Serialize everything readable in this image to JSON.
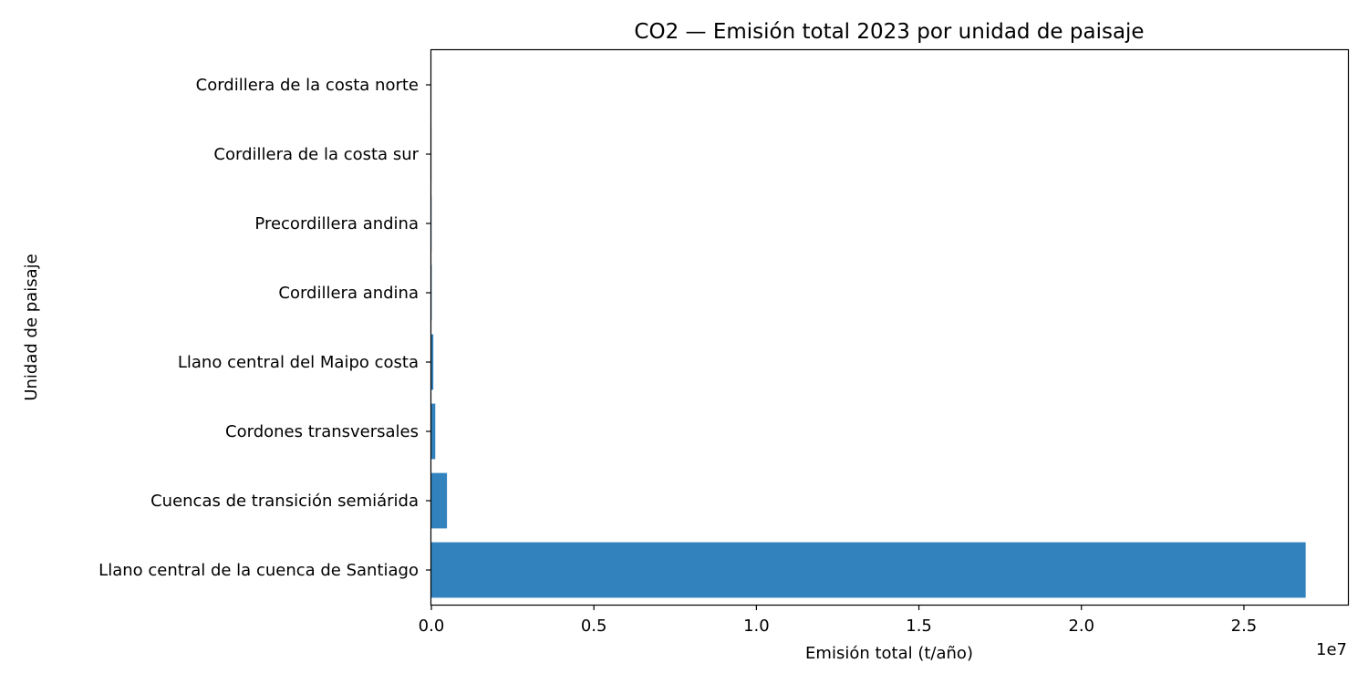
{
  "chart_data": {
    "type": "bar",
    "orientation": "horizontal",
    "title": "CO2 — Emisión total 2023 por unidad de paisaje",
    "xlabel": "Emisión total (t/año)",
    "ylabel": "Unidad de paisaje",
    "x_offset_label": "1e7",
    "categories": [
      "Cordillera de la costa norte",
      "Cordillera de la costa sur",
      "Precordillera andina",
      "Cordillera andina",
      "Llano central del Maipo costa",
      "Cordones transversales",
      "Cuencas de transición semiárida",
      "Llano central de la cuenca de Santiago"
    ],
    "values": [
      1000,
      3000,
      5000,
      10000,
      60000,
      120000,
      480000,
      26900000
    ],
    "xlim": [
      0,
      28200000
    ],
    "xticks": [
      0,
      5000000,
      10000000,
      15000000,
      20000000,
      25000000
    ],
    "xtick_labels": [
      "0.0",
      "0.5",
      "1.0",
      "1.5",
      "2.0",
      "2.5"
    ],
    "bar_color": "#3182bd",
    "grid": false,
    "legend": "none"
  }
}
